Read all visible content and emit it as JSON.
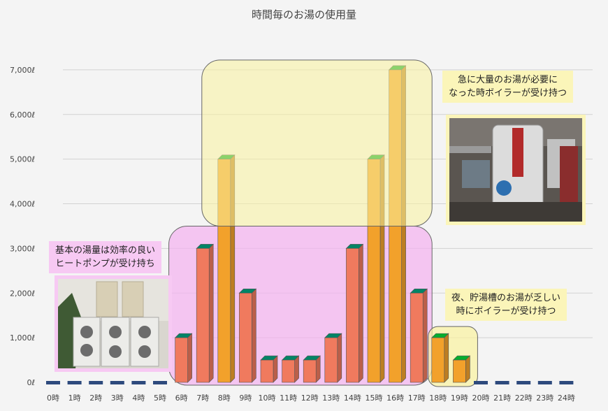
{
  "chart_data": {
    "type": "bar",
    "title": "時間毎のお湯の使用量",
    "xlabel": "",
    "ylabel": "",
    "ylim": [
      0,
      7500
    ],
    "y_ticks": [
      {
        "value": 0,
        "label": "0ℓ"
      },
      {
        "value": 1000,
        "label": "1,000ℓ"
      },
      {
        "value": 2000,
        "label": "2,000ℓ"
      },
      {
        "value": 3000,
        "label": "3,000ℓ"
      },
      {
        "value": 4000,
        "label": "4,000ℓ"
      },
      {
        "value": 5000,
        "label": "5,000ℓ"
      },
      {
        "value": 6000,
        "label": "6,000ℓ"
      },
      {
        "value": 7000,
        "label": "7,000ℓ"
      }
    ],
    "grid": true,
    "legend": "none",
    "categories": [
      "0時",
      "1時",
      "2時",
      "3時",
      "4時",
      "5時",
      "6時",
      "7時",
      "8時",
      "9時",
      "10時",
      "11時",
      "12時",
      "13時",
      "14時",
      "15時",
      "16時",
      "17時",
      "18時",
      "19時",
      "20時",
      "21時",
      "22時",
      "23時",
      "24時"
    ],
    "values": [
      0,
      0,
      0,
      0,
      0,
      0,
      1000,
      3000,
      5000,
      2000,
      500,
      500,
      500,
      1000,
      3000,
      5000,
      7000,
      2000,
      1000,
      500,
      0,
      0,
      0,
      0,
      0
    ],
    "boiler_bar_hours": [
      8,
      15,
      16,
      18,
      19
    ],
    "colors": {
      "heatpump_bar": "#f07a5e",
      "boiler_bar": "#f2a12b",
      "zero_dash": "#2e4a7d",
      "heatpump_zone": "#f4b0f0",
      "boiler_zone": "#f9f29e"
    }
  },
  "annotations": {
    "heatpump": {
      "lines": [
        "基本の湯量は効率の良い",
        "ヒートポンプが受け持ち"
      ]
    },
    "boiler_peak": {
      "lines": [
        "急に大量のお湯が必要に",
        "なった時ボイラーが受け持つ"
      ]
    },
    "boiler_night": {
      "lines": [
        "夜、貯湯槽のお湯が乏しい",
        "時にボイラーが受け持つ"
      ]
    }
  },
  "photos": {
    "heatpump": "heat-pump-units",
    "boiler": "boiler-equipment"
  }
}
